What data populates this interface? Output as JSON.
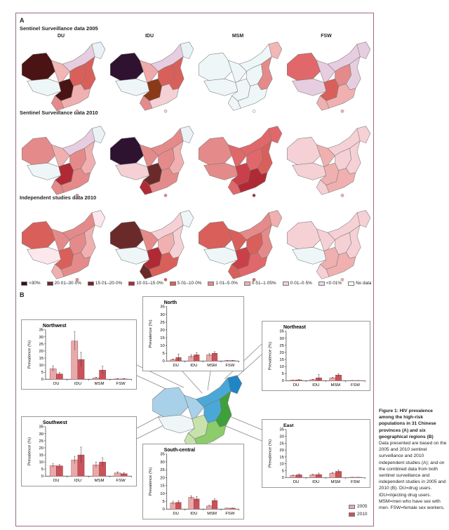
{
  "panel_a": {
    "label": "A",
    "columns": [
      "DU",
      "IDU",
      "MSM",
      "FSW"
    ],
    "rows": [
      {
        "title": "Sentinel Surveillance data 2005",
        "fills": [
          [
            "#4a1414",
            "#eef6f8",
            "#f2b6b6",
            "#e7cde0",
            "#eaf2f6",
            "#4a1414",
            "#e58a8a",
            "#d9605a",
            "#d9605a",
            "#f0b0b0"
          ],
          [
            "#2e1230",
            "#eef6f8",
            "#f0a8a8",
            "#e7cde0",
            "#eaf2f6",
            "#8a3a18",
            "#e58a8a",
            "#d9605a",
            "#d9605a",
            "#f5d0d5"
          ],
          [
            "#eef6f8",
            "#eef6f8",
            "#eef6f8",
            "#eef6f8",
            "#f2b6b6",
            "#eef6f8",
            "#eef6f8",
            "#eef6f8",
            "#e58a8a",
            "#eef6f8"
          ],
          [
            "#e0686a",
            "#e7cde0",
            "#e7cde0",
            "#e7cde0",
            "#e7cde0",
            "#d9605a",
            "#f0b0b0",
            "#e58a8a",
            "#e7cde0",
            "#f0b0b0"
          ]
        ]
      },
      {
        "title": "Sentinel Surveillance data 2010",
        "fills": [
          [
            "#e58a8a",
            "#eef6f8",
            "#f0b0b0",
            "#e7cde0",
            "#eaf2f6",
            "#b02a35",
            "#e58a8a",
            "#e58a8a",
            "#f0b0b0",
            "#e58a8a"
          ],
          [
            "#2e1230",
            "#f5d0d5",
            "#e58a8a",
            "#e58a8a",
            "#eaf2f6",
            "#6b2a2a",
            "#b02a35",
            "#e58a8a",
            "#f0b0b0",
            "#e58a8a"
          ],
          [
            "#e58a8a",
            "#e58a8a",
            "#e0686a",
            "#e0686a",
            "#e0686a",
            "#c9404a",
            "#e0686a",
            "#e0686a",
            "#d9605a",
            "#b02a35"
          ],
          [
            "#f5d0d5",
            "#f5d0d5",
            "#f0b0b0",
            "#f5d0d5",
            "#f5d0d5",
            "#f0b0b0",
            "#f5d0d5",
            "#f5d0d5",
            "#f5d0d5",
            "#f0b0b0"
          ]
        ]
      },
      {
        "title": "Independent studies data 2010",
        "fills": [
          [
            "#d9605a",
            "#fce8ec",
            "#e58a8a",
            "#e58a8a",
            "#fce8ec",
            "#d9605a",
            "#f0b0b0",
            "#e58a8a",
            "#f0b0b0",
            "#e58a8a"
          ],
          [
            "#6b2a2a",
            "#eef6f8",
            "#e58a8a",
            "#f5d0d5",
            "#eef6f8",
            "#b02a35",
            "#6b2a2a",
            "#f0b0b0",
            "#f5d0d5",
            "#d9605a"
          ],
          [
            "#d9605a",
            "#eef6f8",
            "#d9605a",
            "#e58a8a",
            "#f0b0b0",
            "#c9404a",
            "#d9605a",
            "#d9605a",
            "#e58a8a",
            "#e0686a"
          ],
          [
            "#f5d0d5",
            "#eef6f8",
            "#f5d0d5",
            "#f5d0d5",
            "#f5d0d5",
            "#f0b0b0",
            "#f5d0d5",
            "#f5d0d5",
            "#f5d0d5",
            "#f0b0b0"
          ]
        ]
      }
    ],
    "legend": [
      {
        "label": ">30%",
        "color": "#3a1010"
      },
      {
        "label": "20·01–30·0%",
        "color": "#6b2a2a"
      },
      {
        "label": "15·01–20·0%",
        "color": "#7a1f2a"
      },
      {
        "label": "10·01–15·0%",
        "color": "#b02a35"
      },
      {
        "label": "5·01–10·0%",
        "color": "#d9605a"
      },
      {
        "label": "1·01–5·0%",
        "color": "#e58a8a"
      },
      {
        "label": "0·51–1·05%",
        "color": "#f0b0b0"
      },
      {
        "label": "0·01–0·5%",
        "color": "#f5d0d5"
      },
      {
        "label": "<0·01%",
        "color": "#ecdbe8"
      },
      {
        "label": "No data",
        "color": "#ffffff"
      }
    ]
  },
  "panel_b": {
    "label": "B",
    "region_colors": [
      "#a8d0e8",
      "#eef6f8",
      "#a8d0e8",
      "#4aa8d8",
      "#1f86c6",
      "#c8e2ac",
      "#c8e2ac",
      "#4aa8d8",
      "#3ea03a",
      "#8ccc6a"
    ]
  },
  "chart_data": [
    {
      "type": "bar",
      "title": "Northwest",
      "ylabel": "Prevalence (%)",
      "ylim": [
        0,
        35
      ],
      "yticks": [
        0,
        5,
        10,
        15,
        20,
        25,
        30,
        35
      ],
      "categories": [
        "DU",
        "IDU",
        "MSM",
        "FSW"
      ],
      "series": [
        {
          "name": "2005",
          "values": [
            7.5,
            27,
            1,
            0.3
          ],
          "err": [
            2,
            6.5,
            0.5,
            0.2
          ]
        },
        {
          "name": "2010",
          "values": [
            3.8,
            14,
            6.5,
            0.3
          ],
          "err": [
            1,
            5,
            2.7,
            0.2
          ]
        }
      ]
    },
    {
      "type": "bar",
      "title": "North",
      "ylabel": "Prevalence (%)",
      "ylim": [
        0,
        35
      ],
      "yticks": [
        0,
        5,
        10,
        15,
        20,
        25,
        30,
        35
      ],
      "categories": [
        "DU",
        "IDU",
        "MSM",
        "FSW"
      ],
      "series": [
        {
          "name": "2005",
          "values": [
            1,
            3,
            4,
            0.3
          ],
          "err": [
            0.3,
            1,
            0.8,
            0.1
          ]
        },
        {
          "name": "2010",
          "values": [
            2.3,
            4,
            5,
            0.3
          ],
          "err": [
            2.2,
            1.5,
            1,
            0.1
          ]
        }
      ]
    },
    {
      "type": "bar",
      "title": "Northeast",
      "ylabel": "Prevalence (%)",
      "ylim": [
        0,
        35
      ],
      "yticks": [
        0,
        5,
        10,
        15,
        20,
        25,
        30,
        35
      ],
      "categories": [
        "DU",
        "IDU",
        "MSM",
        "FSW"
      ],
      "series": [
        {
          "name": "2005",
          "values": [
            0.4,
            0.7,
            2,
            0.1
          ],
          "err": [
            0.1,
            0.3,
            0.4,
            0.05
          ]
        },
        {
          "name": "2010",
          "values": [
            0.6,
            2,
            4,
            0.1
          ],
          "err": [
            0.2,
            2.3,
            1,
            0.05
          ]
        }
      ]
    },
    {
      "type": "bar",
      "title": "Southwest",
      "ylabel": "Prevalence (%)",
      "ylim": [
        0,
        35
      ],
      "yticks": [
        0,
        5,
        10,
        15,
        20,
        25,
        30,
        35
      ],
      "categories": [
        "DU",
        "IDU",
        "MSM",
        "FSW"
      ],
      "series": [
        {
          "name": "2005",
          "values": [
            7.5,
            11.5,
            8,
            2.3
          ],
          "err": [
            1.2,
            2.5,
            2,
            0.8
          ]
        },
        {
          "name": "2010",
          "values": [
            7.3,
            15,
            10,
            1.7
          ],
          "err": [
            1,
            5.5,
            3,
            0.8
          ]
        }
      ]
    },
    {
      "type": "bar",
      "title": "South-central",
      "ylabel": "Prevalence (%)",
      "ylim": [
        0,
        35
      ],
      "yticks": [
        0,
        5,
        10,
        15,
        20,
        25,
        30,
        35
      ],
      "categories": [
        "DU",
        "IDU",
        "MSM",
        "FSW"
      ],
      "series": [
        {
          "name": "2005",
          "values": [
            4,
            7.5,
            2,
            0.6
          ],
          "err": [
            1,
            1,
            0.5,
            0.1
          ]
        },
        {
          "name": "2010",
          "values": [
            4.3,
            6.5,
            5.5,
            0.6
          ],
          "err": [
            1,
            1.5,
            1,
            0.1
          ]
        }
      ]
    },
    {
      "type": "bar",
      "title": "East",
      "ylabel": "Prevalence (%)",
      "ylim": [
        0,
        35
      ],
      "yticks": [
        0,
        5,
        10,
        15,
        20,
        25,
        30,
        35
      ],
      "categories": [
        "DU",
        "IDU",
        "MSM",
        "FSW"
      ],
      "series": [
        {
          "name": "2005",
          "values": [
            1.5,
            2,
            3.2,
            0.2
          ],
          "err": [
            0.3,
            0.5,
            0.5,
            0.05
          ]
        },
        {
          "name": "2010",
          "values": [
            2,
            2.2,
            4.5,
            0.2
          ],
          "err": [
            0.7,
            1,
            1,
            0.05
          ]
        }
      ]
    }
  ],
  "series_legend": [
    {
      "label": "2005",
      "color": "#e8a9a9"
    },
    {
      "label": "2010",
      "color": "#c9535a"
    }
  ],
  "caption": {
    "title": "Figure 1: HIV prevalence among the high-risk populations in 31 Chinese provinces (A) and six geographical regions (B)",
    "body": "Data presented are based on the 2005 and 2010 sentinel surveillance and 2010 independent studies (A); and on the combined data from both sentinel surveillance and independent studies in 2005 and 2010 (B). DU=drug users. IDU=injecting drug users. MSM=men who have sex with men. FSW=female sex workers."
  }
}
